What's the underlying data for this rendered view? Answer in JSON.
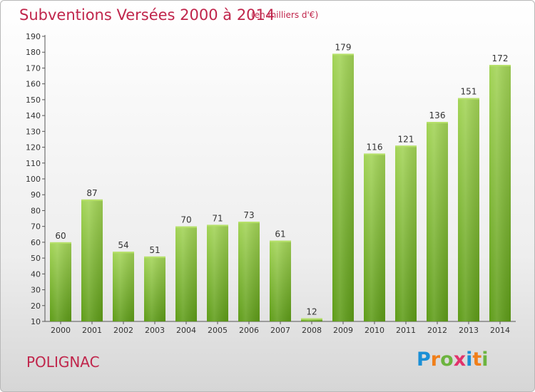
{
  "header": {
    "title": "Subventions Versées 2000 à 2014",
    "subtitle": "(en milliers d'€)"
  },
  "footer": {
    "commune": "POLIGNAC",
    "logo_text": "Proxiti",
    "logo_colors": [
      "#1a8fd6",
      "#f07f1a",
      "#6cb43f",
      "#e2336b",
      "#1a8fd6",
      "#f07f1a",
      "#6cb43f"
    ]
  },
  "colors": {
    "title": "#c0254b",
    "bar_light": "#9ed050",
    "bar_dark": "#5f9e1a"
  },
  "chart_data": {
    "type": "bar",
    "title": "Subventions Versées 2000 à 2014",
    "subtitle": "(en milliers d'€)",
    "categories": [
      "2000",
      "2001",
      "2002",
      "2003",
      "2004",
      "2005",
      "2006",
      "2007",
      "2008",
      "2009",
      "2010",
      "2011",
      "2012",
      "2013",
      "2014"
    ],
    "values": [
      60,
      87,
      54,
      51,
      70,
      71,
      73,
      61,
      12,
      179,
      116,
      121,
      136,
      151,
      172
    ],
    "ylim": [
      10,
      190
    ],
    "yticks": [
      10,
      20,
      30,
      40,
      50,
      60,
      70,
      80,
      90,
      100,
      110,
      120,
      130,
      140,
      150,
      160,
      170,
      180,
      190
    ],
    "grid": false,
    "legend": "none"
  }
}
